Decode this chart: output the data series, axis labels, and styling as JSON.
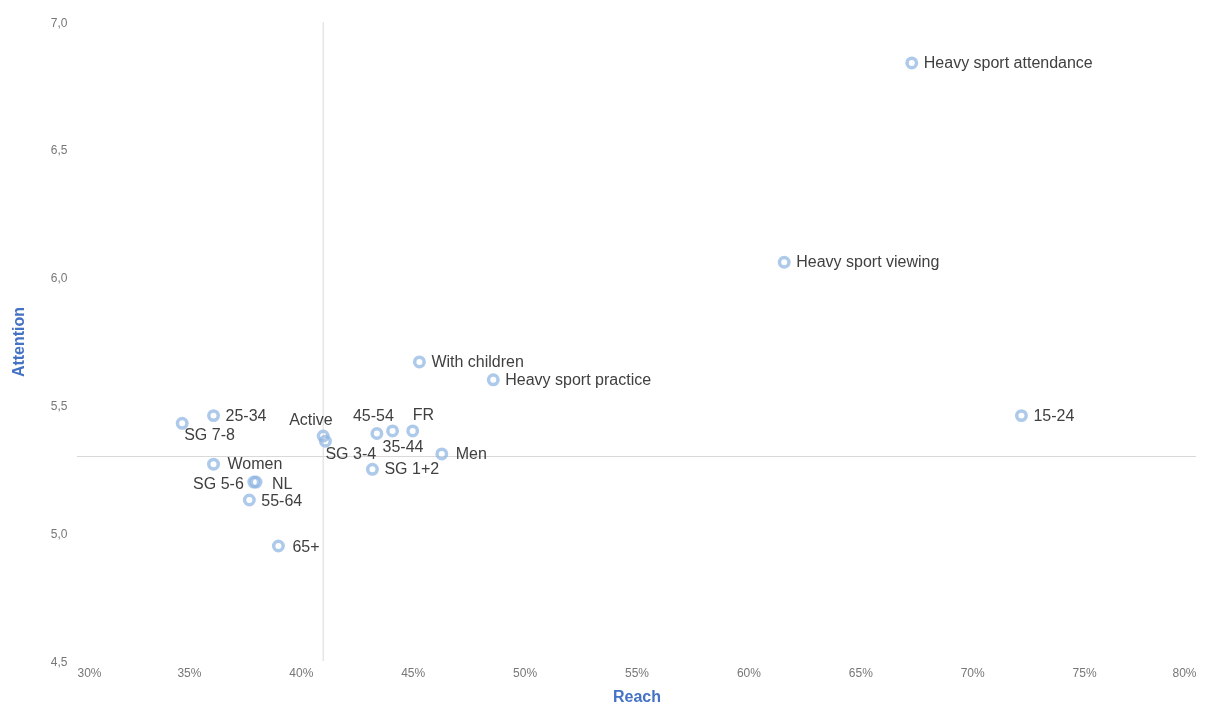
{
  "chart_data": {
    "type": "scatter",
    "xlabel": "Reach",
    "ylabel": "Attention",
    "marker": "circle",
    "grid": false,
    "xlim": [
      30,
      80
    ],
    "xticks": [
      {
        "value": 30,
        "label": "30%"
      },
      {
        "value": 35,
        "label": "35%"
      },
      {
        "value": 40,
        "label": "40%"
      },
      {
        "value": 45,
        "label": "45%"
      },
      {
        "value": 50,
        "label": "50%"
      },
      {
        "value": 55,
        "label": "55%"
      },
      {
        "value": 60,
        "label": "60%"
      },
      {
        "value": 65,
        "label": "65%"
      },
      {
        "value": 70,
        "label": "70%"
      },
      {
        "value": 75,
        "label": "75%"
      },
      {
        "value": 80,
        "label": "80%"
      }
    ],
    "ylim": [
      4.5,
      7.0
    ],
    "yticks": [
      {
        "value": 4.5,
        "label": "4,5"
      },
      {
        "value": 5.0,
        "label": "5,0"
      },
      {
        "value": 5.5,
        "label": "5,5"
      },
      {
        "value": 6.0,
        "label": "6,0"
      },
      {
        "value": 6.5,
        "label": "6,5"
      },
      {
        "value": 7.0,
        "label": "7,0"
      }
    ],
    "x": [
      67.3,
      61.6,
      45.3,
      48.6,
      72.2,
      36.1,
      34.7,
      41.0,
      41.1,
      43.4,
      44.1,
      45.0,
      46.3,
      43.2,
      36.1,
      37.9,
      38.0,
      37.7,
      39.0
    ],
    "series": [
      {
        "color": "#8db4e2",
        "values": [
          6.84,
          6.06,
          5.67,
          5.6,
          5.46,
          5.46,
          5.43,
          5.38,
          5.36,
          5.39,
          5.4,
          5.4,
          5.31,
          5.25,
          5.27,
          5.2,
          5.2,
          5.13,
          4.95
        ]
      }
    ],
    "ref_lines": [
      {
        "axis": "x",
        "value": 41.0,
        "color": "#d9d9d9"
      },
      {
        "axis": "y",
        "value": 5.3,
        "color": "#d9d9d9"
      }
    ],
    "annotations": [
      {
        "text": "Heavy sport attendance",
        "x": 67.3,
        "y": 6.84
      },
      {
        "text": "Heavy sport viewing",
        "x": 61.6,
        "y": 6.06
      },
      {
        "text": "With children",
        "x": 45.3,
        "y": 5.67
      },
      {
        "text": "Heavy sport practice",
        "x": 48.6,
        "y": 5.6
      },
      {
        "text": "15-24",
        "x": 72.2,
        "y": 5.46
      },
      {
        "text": "25-34",
        "x": 36.1,
        "y": 5.46
      },
      {
        "text": "SG 7-8",
        "x": 34.7,
        "y": 5.43
      },
      {
        "text": "Active",
        "x": 41.0,
        "y": 5.38
      },
      {
        "text": "SG 3-4",
        "x": 41.1,
        "y": 5.36
      },
      {
        "text": "45-54",
        "x": 43.4,
        "y": 5.39
      },
      {
        "text": "35-44",
        "x": 44.1,
        "y": 5.4
      },
      {
        "text": "FR",
        "x": 45.0,
        "y": 5.4
      },
      {
        "text": "Men",
        "x": 46.3,
        "y": 5.31
      },
      {
        "text": "SG 1+2",
        "x": 43.2,
        "y": 5.25
      },
      {
        "text": "Women",
        "x": 36.1,
        "y": 5.27
      },
      {
        "text": "SG 5-6",
        "x": 37.9,
        "y": 5.2
      },
      {
        "text": "NL",
        "x": 38.0,
        "y": 5.2
      },
      {
        "text": "55-64",
        "x": 37.7,
        "y": 5.13
      },
      {
        "text": "65+",
        "x": 39.0,
        "y": 4.95
      }
    ]
  }
}
